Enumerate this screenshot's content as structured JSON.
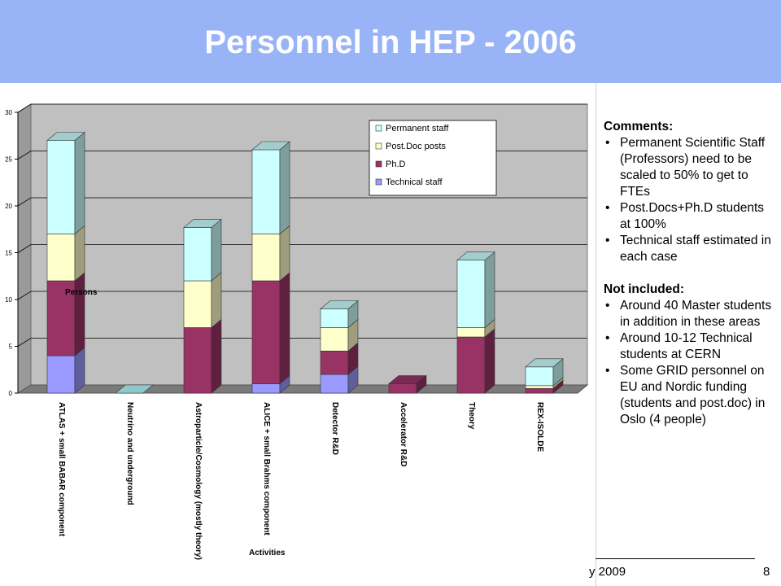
{
  "slide": {
    "title": "Personnel in HEP - 2006",
    "footer_fragment": "y 2009",
    "page_number": "8"
  },
  "comments": {
    "heading1": "Comments:",
    "items1": [
      "Permanent Scientific Staff (Professors) need to be scaled to 50% to get to FTEs",
      "Post.Docs+Ph.D students at 100%",
      "Technical staff estimated in each case"
    ],
    "heading2": "Not included:",
    "items2": [
      "Around 40 Master students in addition in these areas",
      "Around 10-12 Technical students at CERN",
      "Some GRID personnel on EU and Nordic funding (students and post.doc) in Oslo (4 people)"
    ]
  },
  "chart_data": {
    "type": "bar",
    "stacked": true,
    "three_d": true,
    "ylabel": "Persons",
    "xlabel": "Activities",
    "ylim": [
      0,
      30
    ],
    "yticks": [
      "0",
      "5",
      "10",
      "15",
      "20",
      "25",
      "30"
    ],
    "grid": true,
    "legend_position": "top-right",
    "categories": [
      "ATLAS + small BABAR component",
      "Neutrino and underground",
      "Astroparticle/Cosmology (mostly theory)",
      "ALICE + small Brahms component",
      "Detector R&D",
      "Accelerator R&D",
      "Theory",
      "REX-ISOLDE"
    ],
    "series": [
      {
        "name": "Technical staff",
        "color": "#9999ff",
        "values": [
          4,
          0,
          0,
          1,
          2,
          0,
          0,
          0
        ]
      },
      {
        "name": "Ph.D",
        "color": "#993366",
        "values": [
          8,
          0,
          7,
          11,
          2.5,
          1,
          6,
          0.5
        ]
      },
      {
        "name": "Post.Doc posts",
        "color": "#ffffcc",
        "values": [
          5,
          0,
          5,
          5,
          2.5,
          0,
          1,
          0.3
        ]
      },
      {
        "name": "Permanent staff",
        "color": "#ccffff",
        "values": [
          10,
          0,
          5.7,
          9,
          2,
          0,
          7.2,
          2
        ]
      }
    ],
    "legend_order": [
      "Permanent staff",
      "Post.Doc posts",
      "Ph.D",
      "Technical staff"
    ]
  }
}
